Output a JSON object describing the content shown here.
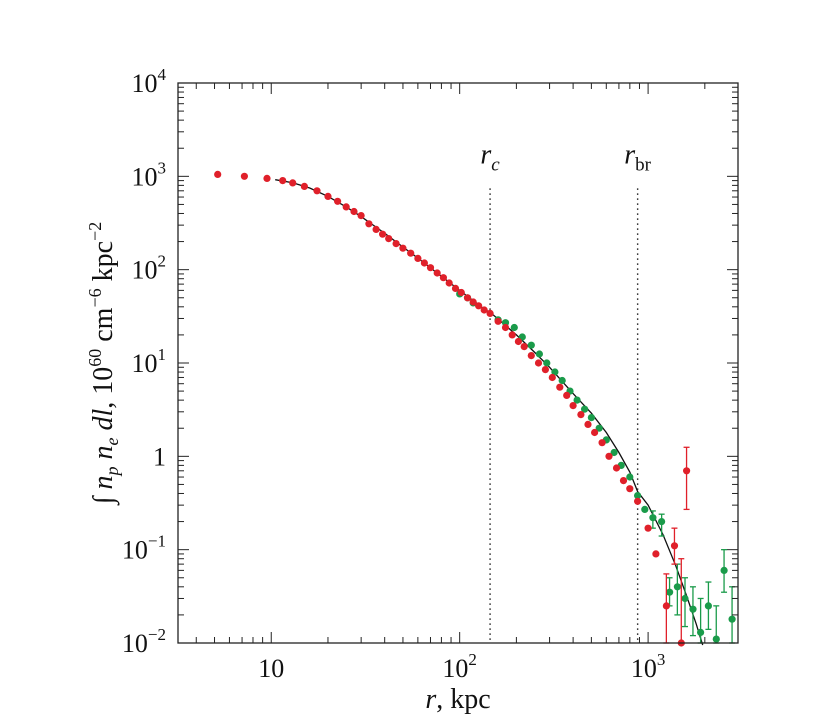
{
  "chart_data": {
    "type": "scatter",
    "title": "",
    "xlabel": "r, kpc",
    "ylabel": "∫ n_p n_e dl, 10^60 cm^−6 kpc^−2",
    "x_scale": "log",
    "y_scale": "log",
    "xlim": [
      3.2,
      3000
    ],
    "ylim": [
      0.01,
      10000
    ],
    "grid": false,
    "x_ticks": [
      {
        "value": 10,
        "base": "10",
        "exp": ""
      },
      {
        "value": 100,
        "base": "10",
        "exp": "2"
      },
      {
        "value": 1000,
        "base": "10",
        "exp": "3"
      }
    ],
    "y_ticks": [
      {
        "value": 0.01,
        "base": "10",
        "exp": "−2"
      },
      {
        "value": 0.1,
        "base": "10",
        "exp": "−1"
      },
      {
        "value": 1,
        "base": "1",
        "exp": ""
      },
      {
        "value": 10,
        "base": "10",
        "exp": "1"
      },
      {
        "value": 100,
        "base": "10",
        "exp": "2"
      },
      {
        "value": 1000,
        "base": "10",
        "exp": "3"
      },
      {
        "value": 10000,
        "base": "10",
        "exp": "4"
      }
    ],
    "vlines": [
      {
        "x": 145,
        "label_main": "r",
        "label_sub": "c",
        "label_sub_italic": true
      },
      {
        "x": 880,
        "label_main": "r",
        "label_sub": "br",
        "label_sub_italic": false
      }
    ],
    "fit_curve": {
      "color": "#111111",
      "points": [
        [
          10.5,
          920
        ],
        [
          13,
          855
        ],
        [
          16,
          750
        ],
        [
          20,
          610
        ],
        [
          25,
          470
        ],
        [
          30,
          370
        ],
        [
          40,
          245
        ],
        [
          50,
          175
        ],
        [
          60,
          133
        ],
        [
          80,
          85
        ],
        [
          100,
          60
        ],
        [
          130,
          40
        ],
        [
          150,
          33
        ],
        [
          200,
          20
        ],
        [
          250,
          13
        ],
        [
          300,
          9
        ],
        [
          400,
          4.7
        ],
        [
          500,
          2.9
        ],
        [
          600,
          1.8
        ],
        [
          700,
          1.1
        ],
        [
          800,
          0.68
        ],
        [
          880,
          0.42
        ],
        [
          1000,
          0.3
        ],
        [
          1200,
          0.145
        ],
        [
          1400,
          0.068
        ],
        [
          1600,
          0.032
        ],
        [
          1800,
          0.016
        ],
        [
          1950,
          0.0095
        ]
      ]
    },
    "series": [
      {
        "color": "#e0202a",
        "points": [
          {
            "x": 5.2,
            "y": 1050
          },
          {
            "x": 7.2,
            "y": 1000
          },
          {
            "x": 9.5,
            "y": 950
          },
          {
            "x": 11.5,
            "y": 900
          },
          {
            "x": 13,
            "y": 850
          },
          {
            "x": 15,
            "y": 780
          },
          {
            "x": 17.5,
            "y": 700
          },
          {
            "x": 20,
            "y": 610
          },
          {
            "x": 22.5,
            "y": 540
          },
          {
            "x": 25,
            "y": 470
          },
          {
            "x": 27.5,
            "y": 420
          },
          {
            "x": 30,
            "y": 380
          },
          {
            "x": 33,
            "y": 310
          },
          {
            "x": 36,
            "y": 270
          },
          {
            "x": 39,
            "y": 240
          },
          {
            "x": 42,
            "y": 215
          },
          {
            "x": 46,
            "y": 190
          },
          {
            "x": 50,
            "y": 170
          },
          {
            "x": 55,
            "y": 150
          },
          {
            "x": 60,
            "y": 132
          },
          {
            "x": 65,
            "y": 118
          },
          {
            "x": 70,
            "y": 105
          },
          {
            "x": 76,
            "y": 92
          },
          {
            "x": 82,
            "y": 82
          },
          {
            "x": 88,
            "y": 72
          },
          {
            "x": 95,
            "y": 63
          },
          {
            "x": 102,
            "y": 57
          },
          {
            "x": 110,
            "y": 50
          },
          {
            "x": 118,
            "y": 45
          },
          {
            "x": 126,
            "y": 41
          },
          {
            "x": 135,
            "y": 37
          },
          {
            "x": 145,
            "y": 34
          },
          {
            "x": 160,
            "y": 28
          },
          {
            "x": 175,
            "y": 24
          },
          {
            "x": 190,
            "y": 20
          },
          {
            "x": 205,
            "y": 17
          },
          {
            "x": 220,
            "y": 15
          },
          {
            "x": 240,
            "y": 12
          },
          {
            "x": 262,
            "y": 10
          },
          {
            "x": 285,
            "y": 8.5
          },
          {
            "x": 310,
            "y": 7
          },
          {
            "x": 340,
            "y": 5.5
          },
          {
            "x": 370,
            "y": 4.5
          },
          {
            "x": 400,
            "y": 3.5
          },
          {
            "x": 440,
            "y": 2.8
          },
          {
            "x": 480,
            "y": 2.2
          },
          {
            "x": 520,
            "y": 1.8
          },
          {
            "x": 570,
            "y": 1.4
          },
          {
            "x": 620,
            "y": 1.0
          },
          {
            "x": 680,
            "y": 0.75
          },
          {
            "x": 740,
            "y": 0.55
          },
          {
            "x": 800,
            "y": 0.45
          },
          {
            "x": 880,
            "y": 0.33
          },
          {
            "x": 1000,
            "y": 0.17
          },
          {
            "x": 1100,
            "y": 0.09
          },
          {
            "x": 1250,
            "y": 0.025,
            "err_low": 0.01,
            "err_high": 0.055
          },
          {
            "x": 1380,
            "y": 0.11,
            "err_low": 0.07,
            "err_high": 0.17
          },
          {
            "x": 1500,
            "y": 0.01,
            "err_low": 0.01,
            "err_high": 0.08
          },
          {
            "x": 1600,
            "y": 0.7,
            "err_low": 0.27,
            "err_high": 1.25
          }
        ]
      },
      {
        "color": "#1a9b4a",
        "points": [
          {
            "x": 100,
            "y": 55
          },
          {
            "x": 110,
            "y": 50
          },
          {
            "x": 118,
            "y": 44
          },
          {
            "x": 160,
            "y": 29
          },
          {
            "x": 175,
            "y": 27
          },
          {
            "x": 195,
            "y": 24
          },
          {
            "x": 215,
            "y": 19
          },
          {
            "x": 240,
            "y": 15.5
          },
          {
            "x": 265,
            "y": 12.5
          },
          {
            "x": 290,
            "y": 10
          },
          {
            "x": 320,
            "y": 8
          },
          {
            "x": 350,
            "y": 6.5
          },
          {
            "x": 385,
            "y": 5
          },
          {
            "x": 420,
            "y": 4
          },
          {
            "x": 460,
            "y": 3.2
          },
          {
            "x": 500,
            "y": 2.6
          },
          {
            "x": 550,
            "y": 2.0
          },
          {
            "x": 600,
            "y": 1.5
          },
          {
            "x": 660,
            "y": 1.1
          },
          {
            "x": 720,
            "y": 0.8
          },
          {
            "x": 800,
            "y": 0.6
          },
          {
            "x": 880,
            "y": 0.38
          },
          {
            "x": 960,
            "y": 0.27
          },
          {
            "x": 1060,
            "y": 0.22,
            "err_low": 0.17,
            "err_high": 0.26
          },
          {
            "x": 1180,
            "y": 0.2,
            "err_low": 0.14,
            "err_high": 0.24
          },
          {
            "x": 1300,
            "y": 0.035,
            "err_low": 0.025,
            "err_high": 0.05
          },
          {
            "x": 1430,
            "y": 0.04,
            "err_low": 0.02,
            "err_high": 0.07
          },
          {
            "x": 1570,
            "y": 0.03,
            "err_low": 0.015,
            "err_high": 0.05
          },
          {
            "x": 1730,
            "y": 0.023,
            "err_low": 0.012,
            "err_high": 0.04
          },
          {
            "x": 1900,
            "y": 0.013,
            "err_low": 0.01,
            "err_high": 0.03
          },
          {
            "x": 2090,
            "y": 0.025,
            "err_low": 0.014,
            "err_high": 0.045
          },
          {
            "x": 2300,
            "y": 0.011,
            "err_low": 0.01,
            "err_high": 0.025
          },
          {
            "x": 2530,
            "y": 0.06,
            "err_low": 0.035,
            "err_high": 0.1
          },
          {
            "x": 2790,
            "y": 0.018,
            "err_low": 0.01,
            "err_high": 0.04
          }
        ]
      }
    ]
  }
}
